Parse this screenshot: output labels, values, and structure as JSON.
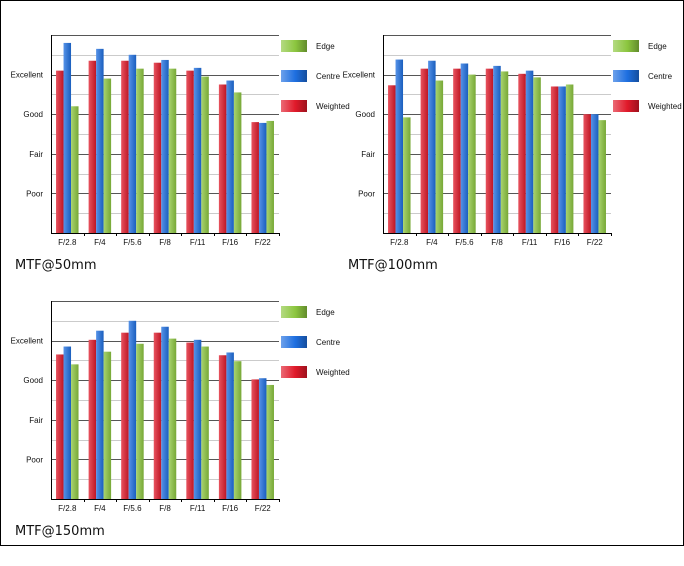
{
  "colors": {
    "edge": "#8cc63f",
    "centre": "#1e6fe0",
    "weighted": "#e01a2a",
    "grid": "#444444",
    "axis": "#000000"
  },
  "legend_icons": {
    "edge": "gradient-swatch",
    "centre": "gradient-swatch",
    "weighted": "gradient-swatch"
  },
  "chart_data": [
    {
      "type": "bar",
      "caption": "MTF@50mm",
      "categories": [
        "F/2.8",
        "F/4",
        "F/5.6",
        "F/8",
        "F/11",
        "F/16",
        "F/22"
      ],
      "ylim": [
        0,
        5
      ],
      "yticks": [
        {
          "value": 1,
          "label": "Poor"
        },
        {
          "value": 2,
          "label": "Fair"
        },
        {
          "value": 3,
          "label": "Good"
        },
        {
          "value": 4,
          "label": "Excellent"
        }
      ],
      "grid_minor": true,
      "legend_position": "right",
      "series": [
        {
          "name": "Weighted",
          "color_key": "weighted",
          "values": [
            4.1,
            4.35,
            4.35,
            4.3,
            4.1,
            3.75,
            2.8
          ]
        },
        {
          "name": "Centre",
          "color_key": "centre",
          "values": [
            4.8,
            4.65,
            4.5,
            4.37,
            4.17,
            3.85,
            2.78
          ]
        },
        {
          "name": "Edge",
          "color_key": "edge",
          "values": [
            3.2,
            3.9,
            4.15,
            4.15,
            3.95,
            3.55,
            2.83
          ]
        }
      ],
      "legend_order": [
        "Edge",
        "Centre",
        "Weighted"
      ]
    },
    {
      "type": "bar",
      "caption": "MTF@100mm",
      "categories": [
        "F/2.8",
        "F/4",
        "F/5.6",
        "F/8",
        "F/11",
        "F/16",
        "F/22"
      ],
      "ylim": [
        0,
        5
      ],
      "yticks": [
        {
          "value": 1,
          "label": "Poor"
        },
        {
          "value": 2,
          "label": "Fair"
        },
        {
          "value": 3,
          "label": "Good"
        },
        {
          "value": 4,
          "label": "Excellent"
        }
      ],
      "grid_minor": true,
      "legend_position": "right",
      "series": [
        {
          "name": "Weighted",
          "color_key": "weighted",
          "values": [
            3.73,
            4.15,
            4.15,
            4.15,
            4.02,
            3.7,
            3.0
          ]
        },
        {
          "name": "Centre",
          "color_key": "centre",
          "values": [
            4.38,
            4.35,
            4.28,
            4.22,
            4.1,
            3.7,
            3.0
          ]
        },
        {
          "name": "Edge",
          "color_key": "edge",
          "values": [
            2.92,
            3.85,
            4.0,
            4.08,
            3.93,
            3.75,
            2.85
          ]
        }
      ],
      "legend_order": [
        "Edge",
        "Centre",
        "Weighted"
      ]
    },
    {
      "type": "bar",
      "caption": "MTF@150mm",
      "categories": [
        "F/2.8",
        "F/4",
        "F/5.6",
        "F/8",
        "F/11",
        "F/16",
        "F/22"
      ],
      "ylim": [
        0,
        5
      ],
      "yticks": [
        {
          "value": 1,
          "label": "Poor"
        },
        {
          "value": 2,
          "label": "Fair"
        },
        {
          "value": 3,
          "label": "Good"
        },
        {
          "value": 4,
          "label": "Excellent"
        }
      ],
      "grid_minor": true,
      "legend_position": "right",
      "series": [
        {
          "name": "Weighted",
          "color_key": "weighted",
          "values": [
            3.65,
            4.02,
            4.2,
            4.2,
            3.95,
            3.63,
            3.02
          ]
        },
        {
          "name": "Centre",
          "color_key": "centre",
          "values": [
            3.85,
            4.25,
            4.5,
            4.35,
            4.02,
            3.7,
            3.05
          ]
        },
        {
          "name": "Edge",
          "color_key": "edge",
          "values": [
            3.4,
            3.72,
            3.92,
            4.05,
            3.85,
            3.48,
            2.88
          ]
        }
      ],
      "legend_order": [
        "Edge",
        "Centre",
        "Weighted"
      ]
    }
  ]
}
